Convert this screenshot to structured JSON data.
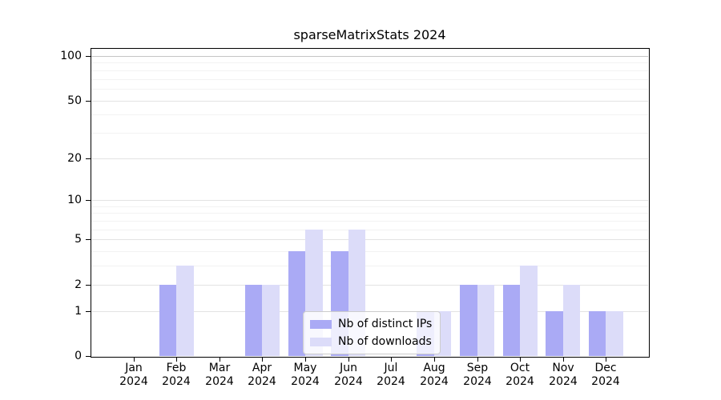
{
  "chart_data": {
    "type": "bar",
    "title": "sparseMatrixStats 2024",
    "categories": [
      "Jan",
      "Feb",
      "Mar",
      "Apr",
      "May",
      "Jun",
      "Jul",
      "Aug",
      "Sep",
      "Oct",
      "Nov",
      "Dec"
    ],
    "year_label": "2024",
    "series": [
      {
        "name": "Nb of distinct IPs",
        "color": "#aaaaf5",
        "values": [
          0,
          2,
          0,
          2,
          4,
          4,
          0,
          1,
          2,
          2,
          1,
          1
        ]
      },
      {
        "name": "Nb of downloads",
        "color": "#dcdcf9",
        "values": [
          0,
          3,
          0,
          2,
          6,
          6,
          0,
          1,
          2,
          3,
          2,
          1
        ]
      }
    ],
    "yscale": "log1p",
    "yticks": [
      0,
      1,
      2,
      5,
      10,
      20,
      50,
      100
    ],
    "minor_yticks": [
      3,
      4,
      6,
      7,
      8,
      9,
      30,
      40,
      60,
      70,
      80,
      90
    ],
    "ylim": [
      0,
      113
    ],
    "grid": true,
    "legend_position": "lower center",
    "colors": {
      "spine": "#000000",
      "grid_major": "#e3e3e3",
      "grid_minor": "#f2f2f2",
      "grid_top": "#c4c4c4"
    }
  }
}
